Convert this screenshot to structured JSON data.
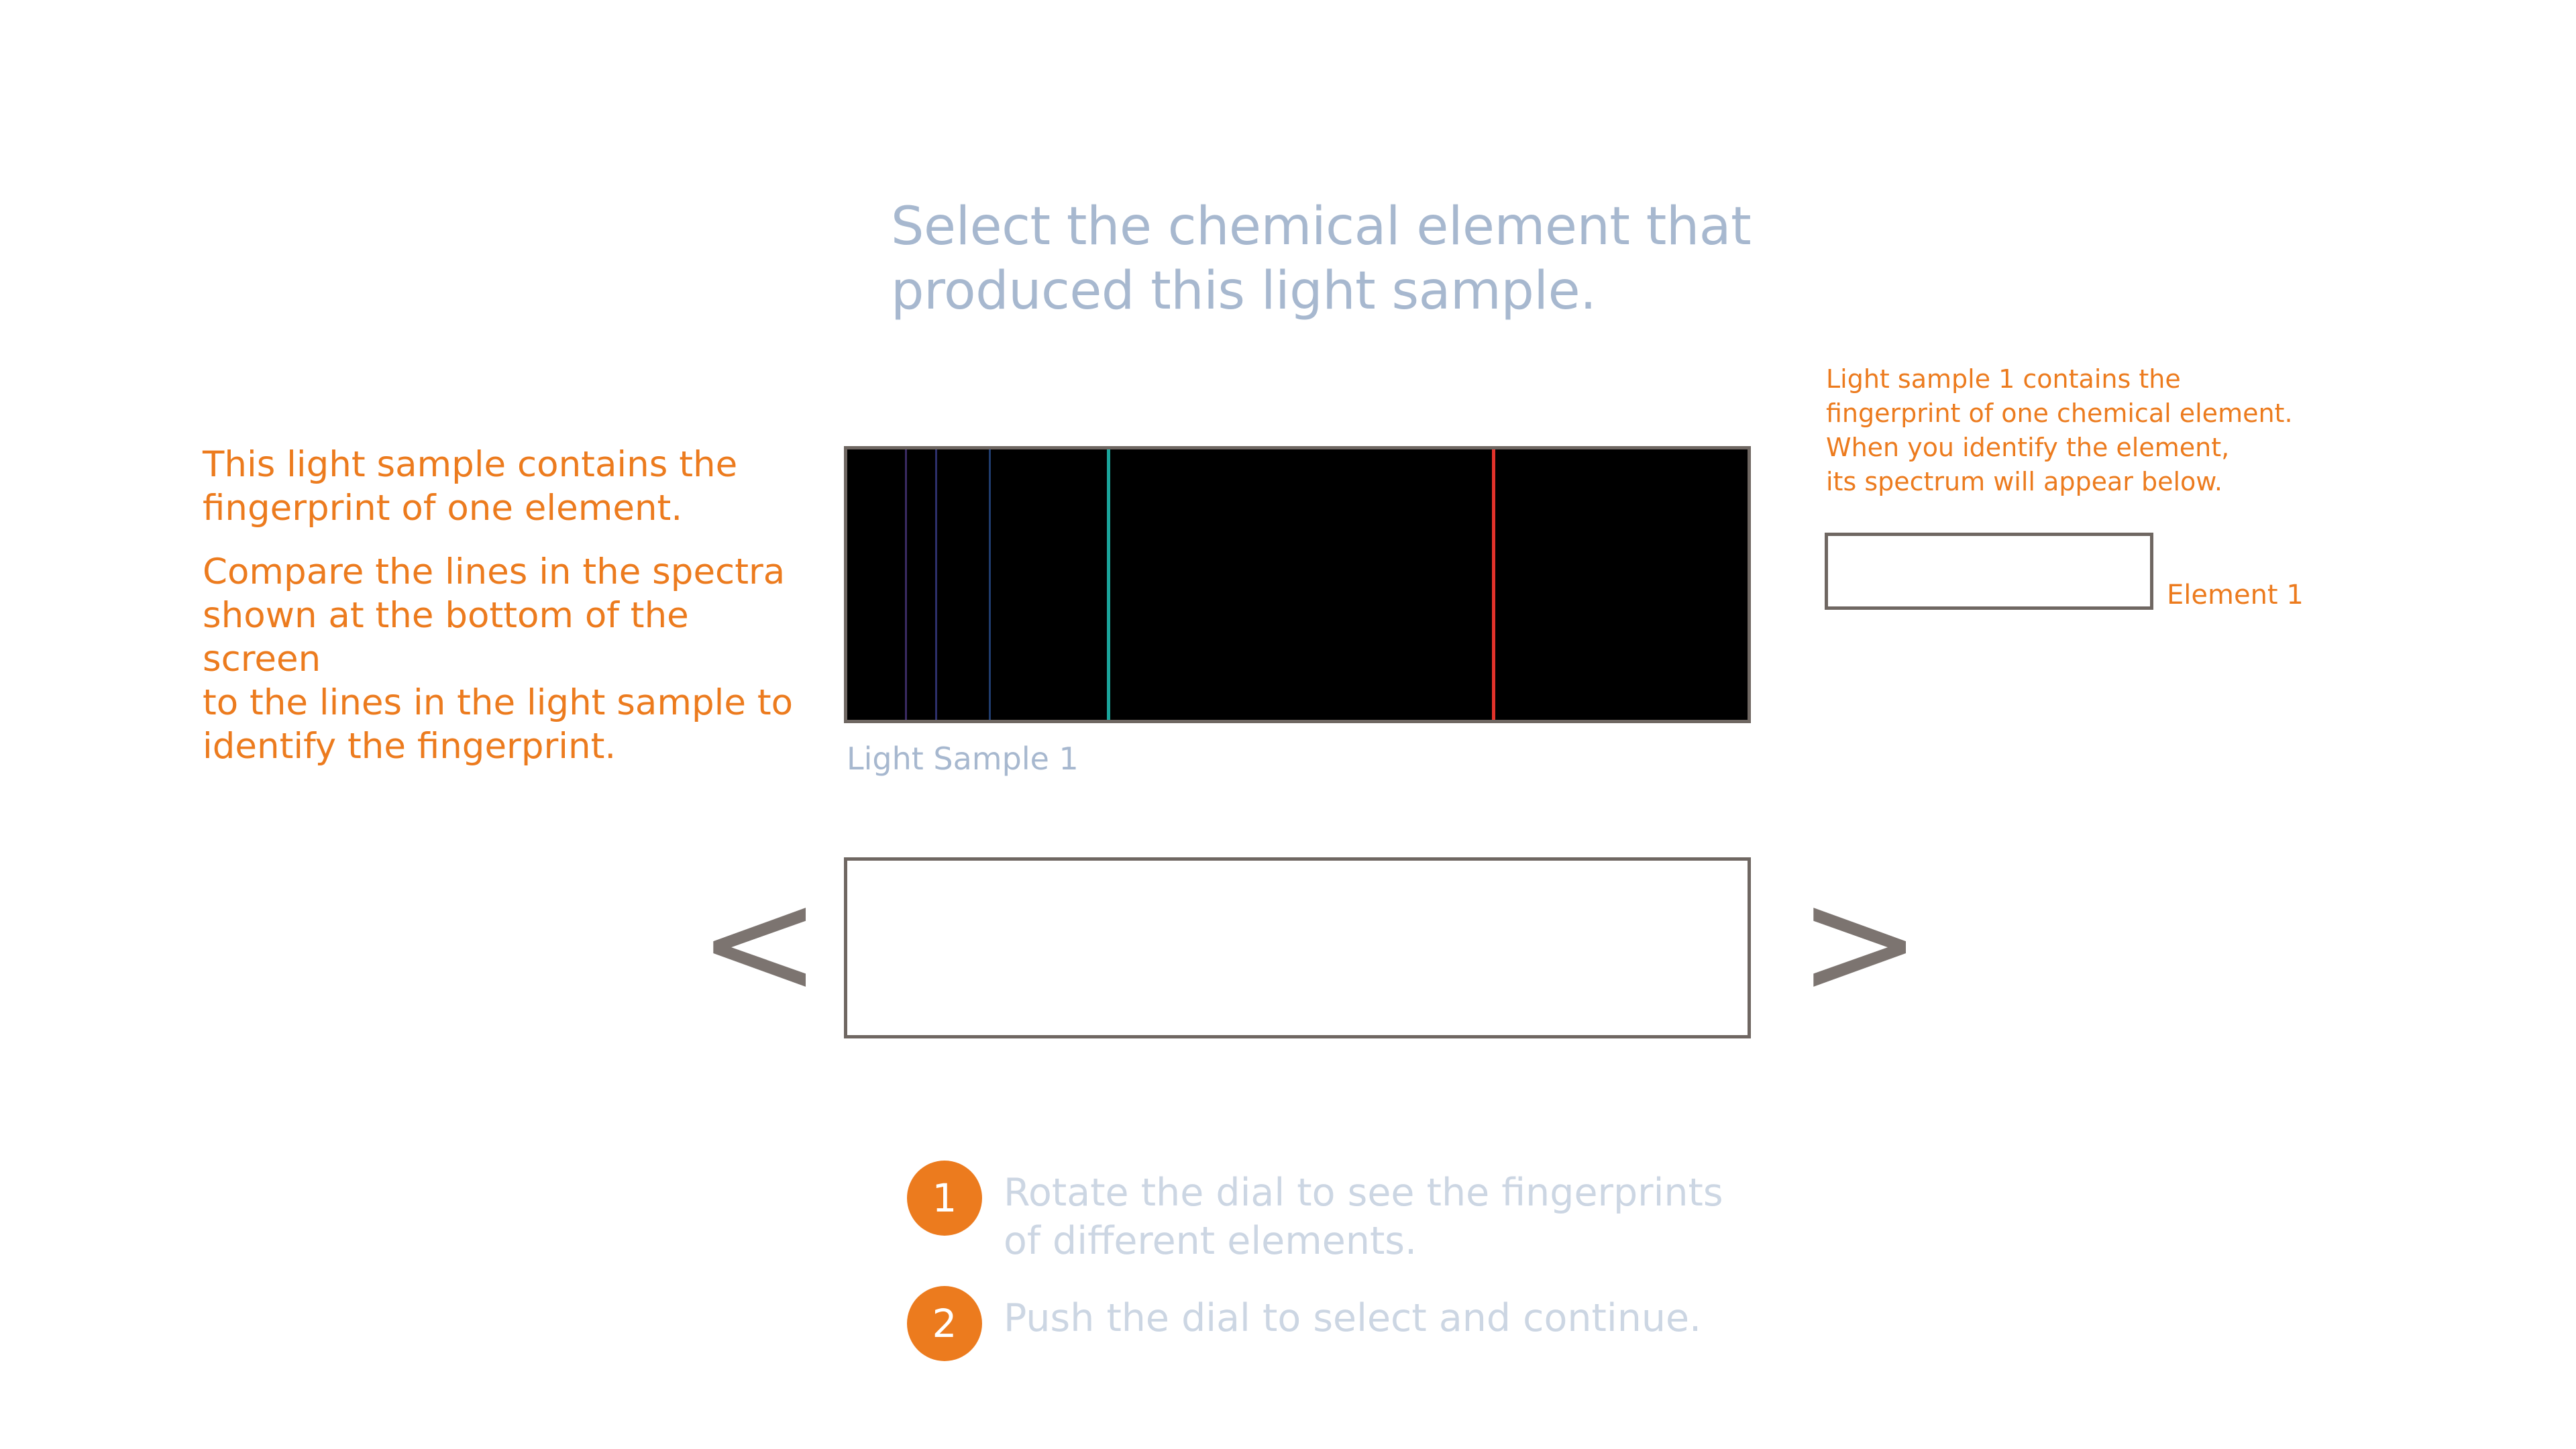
{
  "title": {
    "line1": "Select the chemical element that",
    "line2": "produced this light sample."
  },
  "left_info": {
    "paragraph1": "This light sample contains the\nfingerprint of one element.",
    "paragraph2": "Compare the lines in the spectra\nshown at the bottom of the screen\nto the lines in the light sample to\nidentify the fingerprint."
  },
  "light_sample": {
    "label": "Light Sample 1",
    "lines": [
      {
        "color": "#3b2a63",
        "fraction": 0.065
      },
      {
        "color": "#2c2f6a",
        "fraction": 0.099
      },
      {
        "color": "#1f3c6d",
        "fraction": 0.158
      },
      {
        "color": "#1aa59b",
        "fraction": 0.29
      },
      {
        "color": "#e2322a",
        "fraction": 0.718
      }
    ]
  },
  "right_info": {
    "line1": "Light sample 1 contains the",
    "line2": "fingerprint of one chemical element.",
    "line3": "When you identify the element,",
    "line4": "its spectrum will appear below."
  },
  "element_slot": {
    "label": "Element 1"
  },
  "selector": {
    "prev_glyph": "<",
    "next_glyph": ">"
  },
  "steps": {
    "step1": {
      "number": "1",
      "line1": "Rotate the dial to see the fingerprints",
      "line2": "of different elements."
    },
    "step2": {
      "number": "2",
      "line1": "Push the dial to select and continue."
    }
  },
  "colors": {
    "accent": "#ec7b1e",
    "title": "#a7b8cf",
    "muted": "#ccd6e3",
    "border": "#6f6762"
  }
}
